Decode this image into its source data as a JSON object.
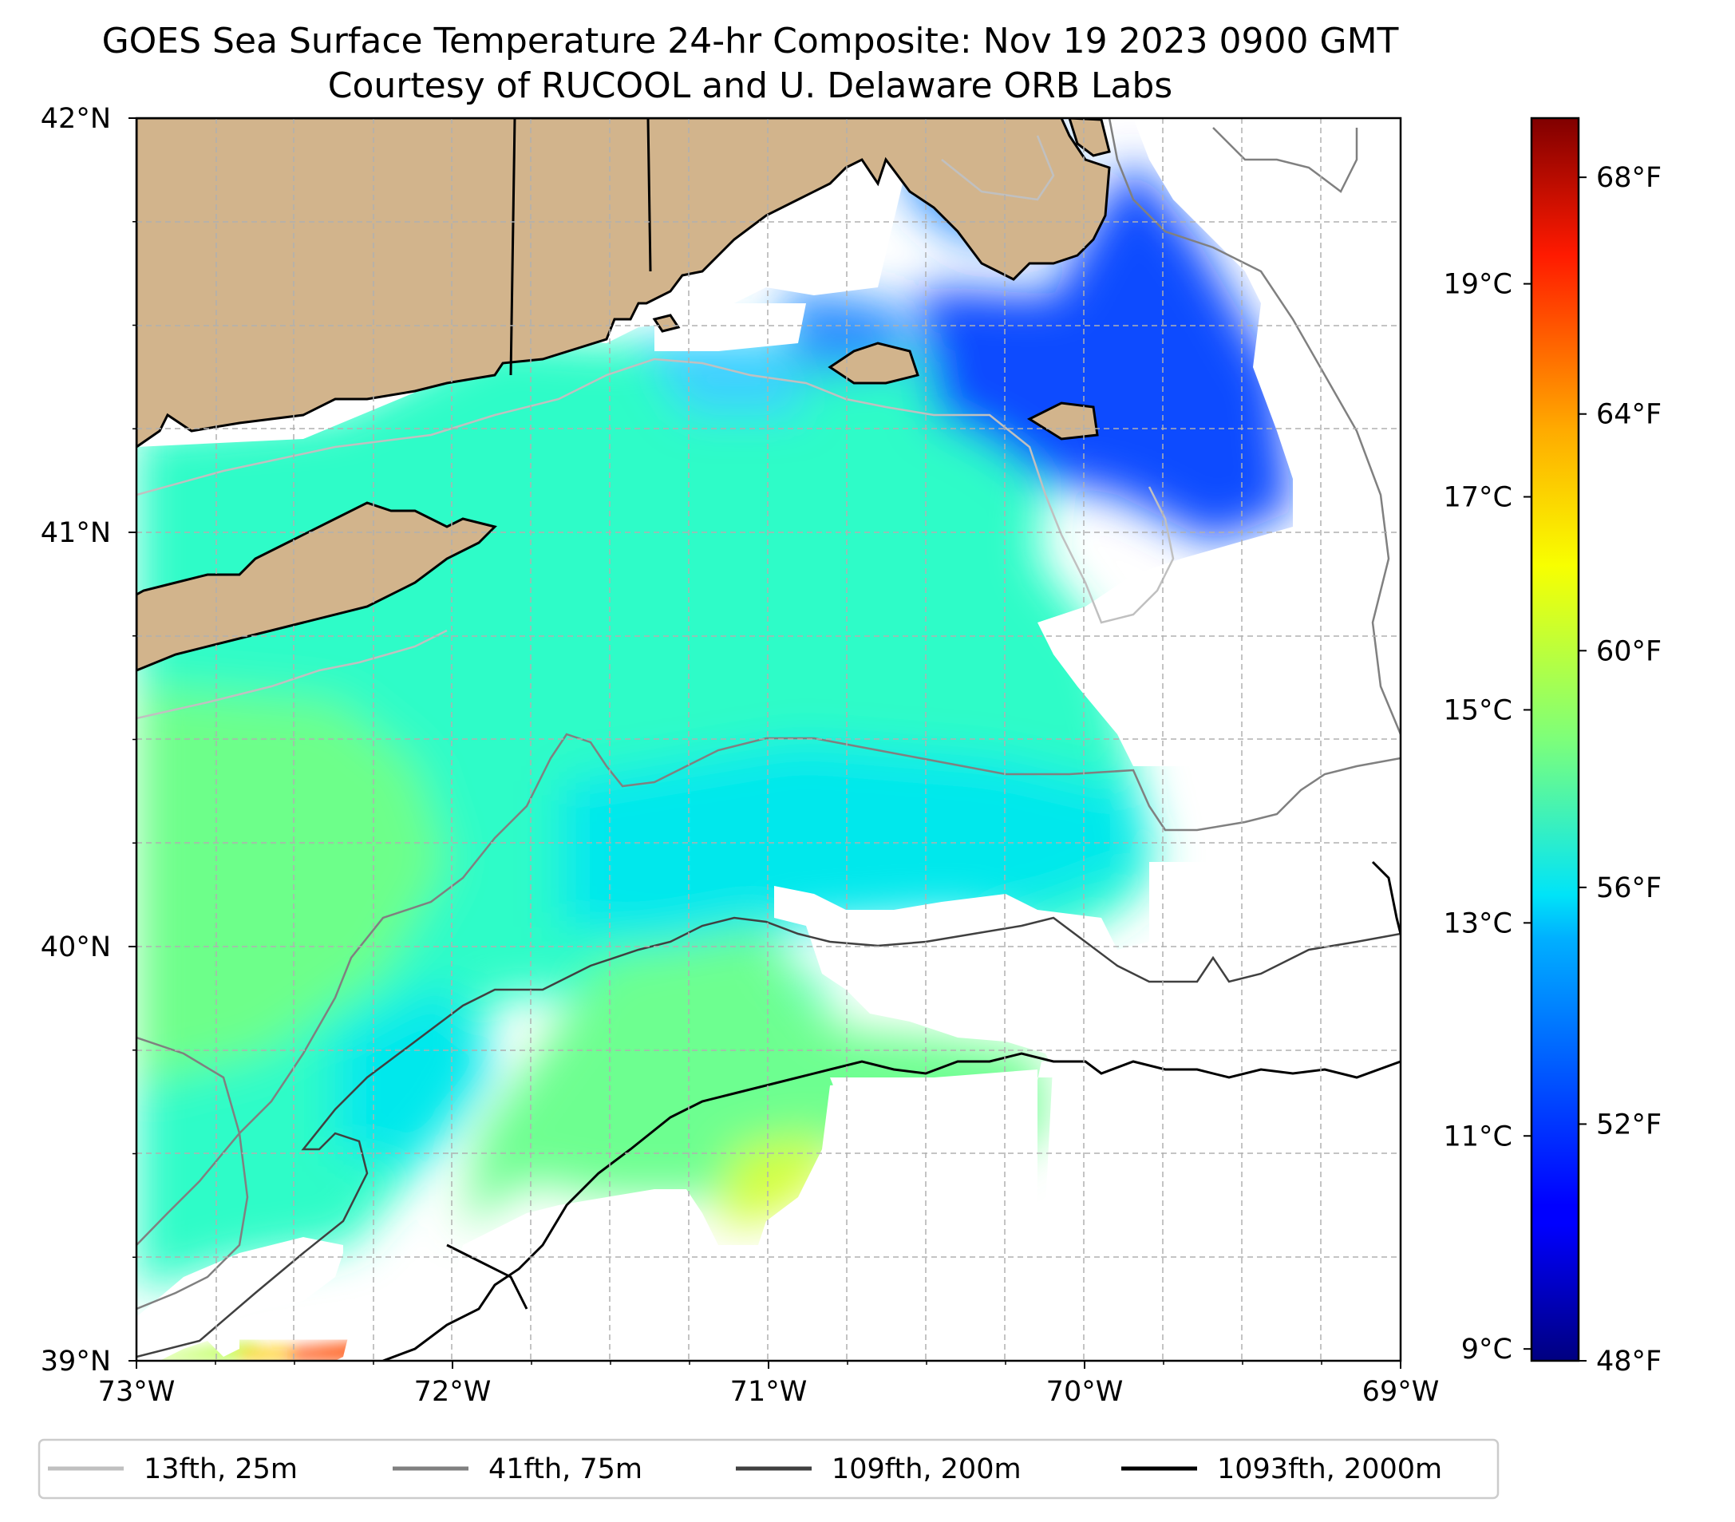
{
  "title": {
    "line1": "GOES Sea Surface Temperature 24-hr Composite: Nov 19 2023 0900 GMT",
    "line2": "Courtesy of RUCOOL and U. Delaware ORB Labs"
  },
  "map": {
    "lon_range": [
      -73,
      -69
    ],
    "lat_range": [
      39,
      42
    ],
    "x_ticks": [
      {
        "value": -73,
        "label": "73°W"
      },
      {
        "value": -72,
        "label": "72°W"
      },
      {
        "value": -71,
        "label": "71°W"
      },
      {
        "value": -70,
        "label": "70°W"
      },
      {
        "value": -69,
        "label": "69°W"
      }
    ],
    "y_ticks": [
      {
        "value": 42,
        "label": "42°N"
      },
      {
        "value": 41,
        "label": "41°N"
      },
      {
        "value": 40,
        "label": "40°N"
      },
      {
        "value": 39,
        "label": "39°N"
      }
    ],
    "grid": true,
    "land_color": "#d2b48c",
    "missing_data_color": "#ffffff"
  },
  "colorbar": {
    "colormap": "jet",
    "range_f": [
      48,
      69
    ],
    "celsius_ticks": [
      {
        "value": 9,
        "label": "9°C"
      },
      {
        "value": 11,
        "label": "11°C"
      },
      {
        "value": 13,
        "label": "13°C"
      },
      {
        "value": 15,
        "label": "15°C"
      },
      {
        "value": 17,
        "label": "17°C"
      },
      {
        "value": 19,
        "label": "19°C"
      }
    ],
    "fahrenheit_ticks": [
      {
        "value": 48,
        "label": "48°F"
      },
      {
        "value": 52,
        "label": "52°F"
      },
      {
        "value": 56,
        "label": "56°F"
      },
      {
        "value": 60,
        "label": "60°F"
      },
      {
        "value": 64,
        "label": "64°F"
      },
      {
        "value": 68,
        "label": "68°F"
      }
    ]
  },
  "legend": {
    "placement": "bottom",
    "items": [
      {
        "label": "13fth, 25m",
        "color": "#c0c0c0"
      },
      {
        "label": "41fth, 75m",
        "color": "#808080"
      },
      {
        "label": "109fth, 200m",
        "color": "#404040"
      },
      {
        "label": "1093fth, 2000m",
        "color": "#000000"
      }
    ]
  }
}
